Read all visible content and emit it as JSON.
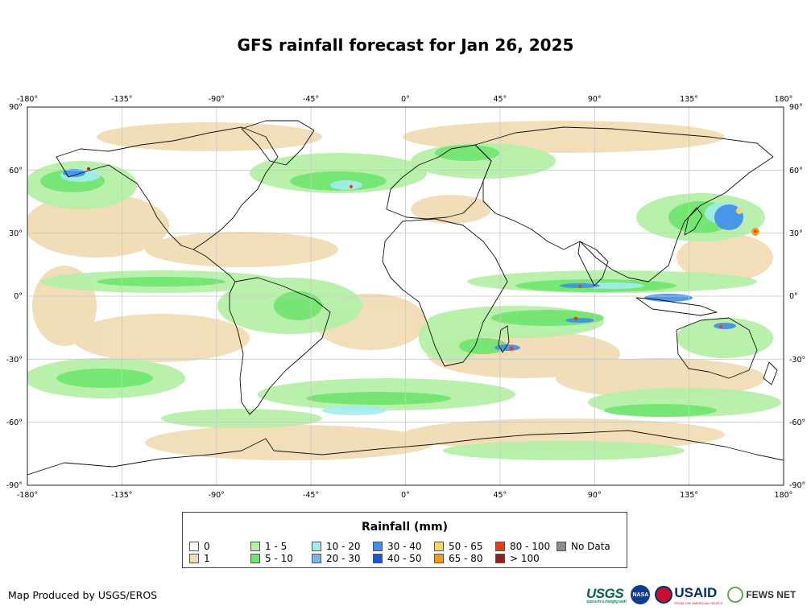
{
  "title": "GFS rainfall forecast for Jan 26, 2025",
  "axes": {
    "lon_ticks": [
      "-180°",
      "-135°",
      "-90°",
      "-45°",
      "0°",
      "45°",
      "90°",
      "135°",
      "180°"
    ],
    "lat_ticks_left": [
      "90°",
      "60°",
      "30°",
      "0°",
      "-30°",
      "-60°",
      "-90°"
    ],
    "lat_ticks_right": [
      "90°",
      "60°",
      "30°",
      "0°",
      "-30°",
      "-60°",
      "-90°"
    ]
  },
  "legend": {
    "title": "Rainfall (mm)",
    "items": [
      {
        "label": "0",
        "color": "#ffffff"
      },
      {
        "label": "1",
        "color": "#f1dcb5"
      },
      {
        "label": "1 - 5",
        "color": "#b5f0a8"
      },
      {
        "label": "5 - 10",
        "color": "#6fe46f"
      },
      {
        "label": "10 - 20",
        "color": "#a4ecf0"
      },
      {
        "label": "20 - 30",
        "color": "#7ab4f0"
      },
      {
        "label": "30 - 40",
        "color": "#3f8ee8"
      },
      {
        "label": "40 - 50",
        "color": "#1558d6"
      },
      {
        "label": "50 - 65",
        "color": "#f5d86a"
      },
      {
        "label": "65 - 80",
        "color": "#f39a12"
      },
      {
        "label": "80 - 100",
        "color": "#f03a10"
      },
      {
        "label": "> 100",
        "color": "#9c1c1c"
      },
      {
        "label": "No Data",
        "color": "#8c8c8c"
      }
    ]
  },
  "credit": "Map Produced by USGS/EROS",
  "logos": {
    "usgs": "USGS",
    "usgs_tagline": "science for a changing world",
    "nasa": "NASA",
    "usaid": "USAID",
    "usaid_tagline": "FROM THE AMERICAN PEOPLE",
    "fews": "FEWS NET"
  }
}
